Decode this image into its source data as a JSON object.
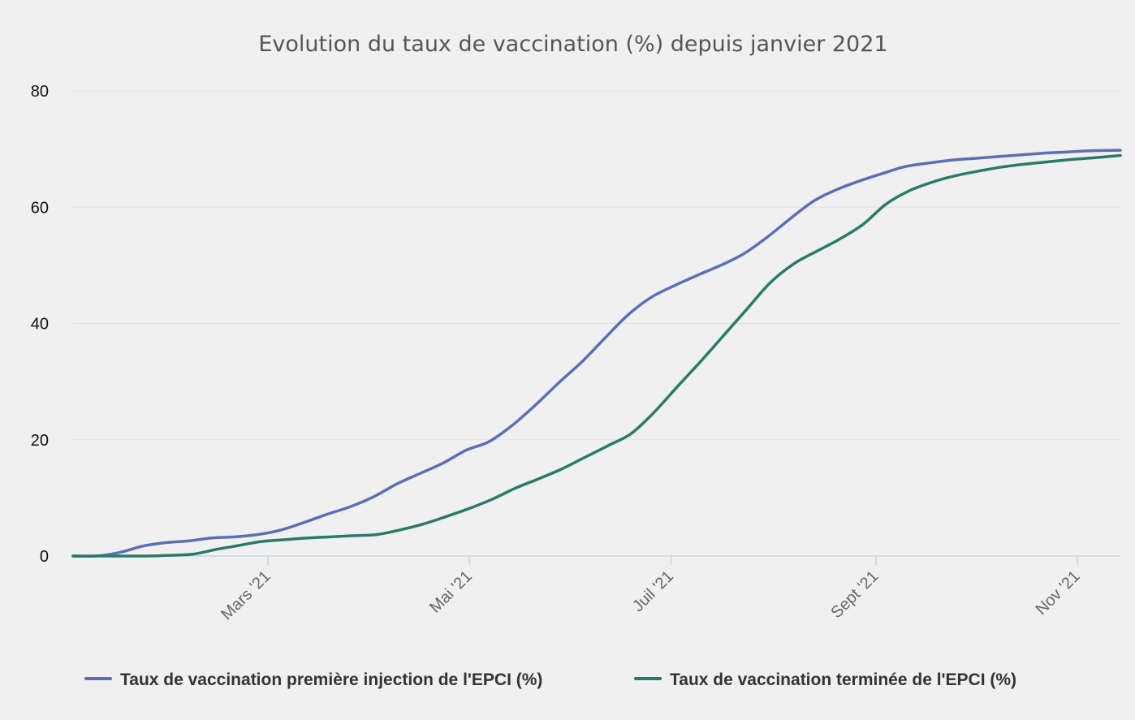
{
  "chart_data": {
    "type": "line",
    "title": "Evolution du taux de vaccination (%) depuis janvier 2021",
    "xlabel": "",
    "ylabel": "",
    "ylim": [
      0,
      80
    ],
    "y_ticks": [
      0,
      20,
      40,
      60,
      80
    ],
    "x_tick_labels": [
      {
        "date": "2021-03-01",
        "label": "Mars '21"
      },
      {
        "date": "2021-05-01",
        "label": "Mai '21"
      },
      {
        "date": "2021-07-01",
        "label": "Juil '21"
      },
      {
        "date": "2021-09-01",
        "label": "Sept '21"
      },
      {
        "date": "2021-11-01",
        "label": "Nov '21"
      }
    ],
    "xlim": [
      "2021-01-01",
      "2021-11-14"
    ],
    "grid": "horizontal",
    "legend_position": "bottom",
    "series": [
      {
        "name": "Taux de vaccination première injection de l'EPCI (%)",
        "color": "#5b6fb5",
        "points": [
          [
            "2021-01-01",
            0
          ],
          [
            "2021-01-08",
            0
          ],
          [
            "2021-01-15",
            0.6
          ],
          [
            "2021-01-22",
            1.7
          ],
          [
            "2021-01-29",
            2.3
          ],
          [
            "2021-02-05",
            2.6
          ],
          [
            "2021-02-12",
            3.1
          ],
          [
            "2021-02-19",
            3.3
          ],
          [
            "2021-02-26",
            3.7
          ],
          [
            "2021-03-05",
            4.5
          ],
          [
            "2021-03-12",
            5.8
          ],
          [
            "2021-03-19",
            7.2
          ],
          [
            "2021-03-26",
            8.5
          ],
          [
            "2021-04-02",
            10.2
          ],
          [
            "2021-04-09",
            12.4
          ],
          [
            "2021-04-16",
            14.2
          ],
          [
            "2021-04-23",
            16.0
          ],
          [
            "2021-04-30",
            18.2
          ],
          [
            "2021-05-07",
            19.7
          ],
          [
            "2021-05-14",
            22.5
          ],
          [
            "2021-05-21",
            26.0
          ],
          [
            "2021-05-28",
            29.8
          ],
          [
            "2021-06-04",
            33.4
          ],
          [
            "2021-06-11",
            37.5
          ],
          [
            "2021-06-18",
            41.5
          ],
          [
            "2021-06-25",
            44.5
          ],
          [
            "2021-07-02",
            46.5
          ],
          [
            "2021-07-09",
            48.3
          ],
          [
            "2021-07-16",
            50.0
          ],
          [
            "2021-07-23",
            52.0
          ],
          [
            "2021-07-30",
            54.8
          ],
          [
            "2021-08-06",
            58.0
          ],
          [
            "2021-08-13",
            61.0
          ],
          [
            "2021-08-20",
            63.0
          ],
          [
            "2021-08-27",
            64.5
          ],
          [
            "2021-09-03",
            65.8
          ],
          [
            "2021-09-10",
            67.0
          ],
          [
            "2021-09-17",
            67.6
          ],
          [
            "2021-09-24",
            68.1
          ],
          [
            "2021-10-01",
            68.4
          ],
          [
            "2021-10-08",
            68.7
          ],
          [
            "2021-10-15",
            69.0
          ],
          [
            "2021-10-22",
            69.3
          ],
          [
            "2021-10-29",
            69.5
          ],
          [
            "2021-11-05",
            69.7
          ],
          [
            "2021-11-14",
            69.8
          ]
        ]
      },
      {
        "name": "Taux de vaccination terminée de l'EPCI (%)",
        "color": "#2a7a6a",
        "points": [
          [
            "2021-01-01",
            0
          ],
          [
            "2021-01-22",
            0
          ],
          [
            "2021-01-29",
            0.1
          ],
          [
            "2021-02-06",
            0.3
          ],
          [
            "2021-02-13",
            1.1
          ],
          [
            "2021-02-20",
            1.8
          ],
          [
            "2021-02-27",
            2.5
          ],
          [
            "2021-03-06",
            2.8
          ],
          [
            "2021-03-13",
            3.1
          ],
          [
            "2021-03-20",
            3.3
          ],
          [
            "2021-03-27",
            3.5
          ],
          [
            "2021-04-03",
            3.7
          ],
          [
            "2021-04-10",
            4.5
          ],
          [
            "2021-04-17",
            5.5
          ],
          [
            "2021-04-24",
            6.8
          ],
          [
            "2021-05-01",
            8.2
          ],
          [
            "2021-05-08",
            9.8
          ],
          [
            "2021-05-15",
            11.7
          ],
          [
            "2021-05-22",
            13.3
          ],
          [
            "2021-05-29",
            15.0
          ],
          [
            "2021-06-05",
            17.0
          ],
          [
            "2021-06-12",
            19.0
          ],
          [
            "2021-06-19",
            21.1
          ],
          [
            "2021-06-26",
            24.8
          ],
          [
            "2021-07-03",
            29.2
          ],
          [
            "2021-07-10",
            33.5
          ],
          [
            "2021-07-17",
            38.0
          ],
          [
            "2021-07-24",
            42.5
          ],
          [
            "2021-07-31",
            47.0
          ],
          [
            "2021-08-07",
            50.2
          ],
          [
            "2021-08-14",
            52.4
          ],
          [
            "2021-08-21",
            54.5
          ],
          [
            "2021-08-28",
            57.0
          ],
          [
            "2021-09-04",
            60.5
          ],
          [
            "2021-09-11",
            62.8
          ],
          [
            "2021-09-18",
            64.3
          ],
          [
            "2021-09-25",
            65.4
          ],
          [
            "2021-10-02",
            66.2
          ],
          [
            "2021-10-09",
            66.9
          ],
          [
            "2021-10-16",
            67.4
          ],
          [
            "2021-10-23",
            67.8
          ],
          [
            "2021-10-30",
            68.2
          ],
          [
            "2021-11-06",
            68.5
          ],
          [
            "2021-11-14",
            68.9
          ]
        ]
      }
    ]
  }
}
